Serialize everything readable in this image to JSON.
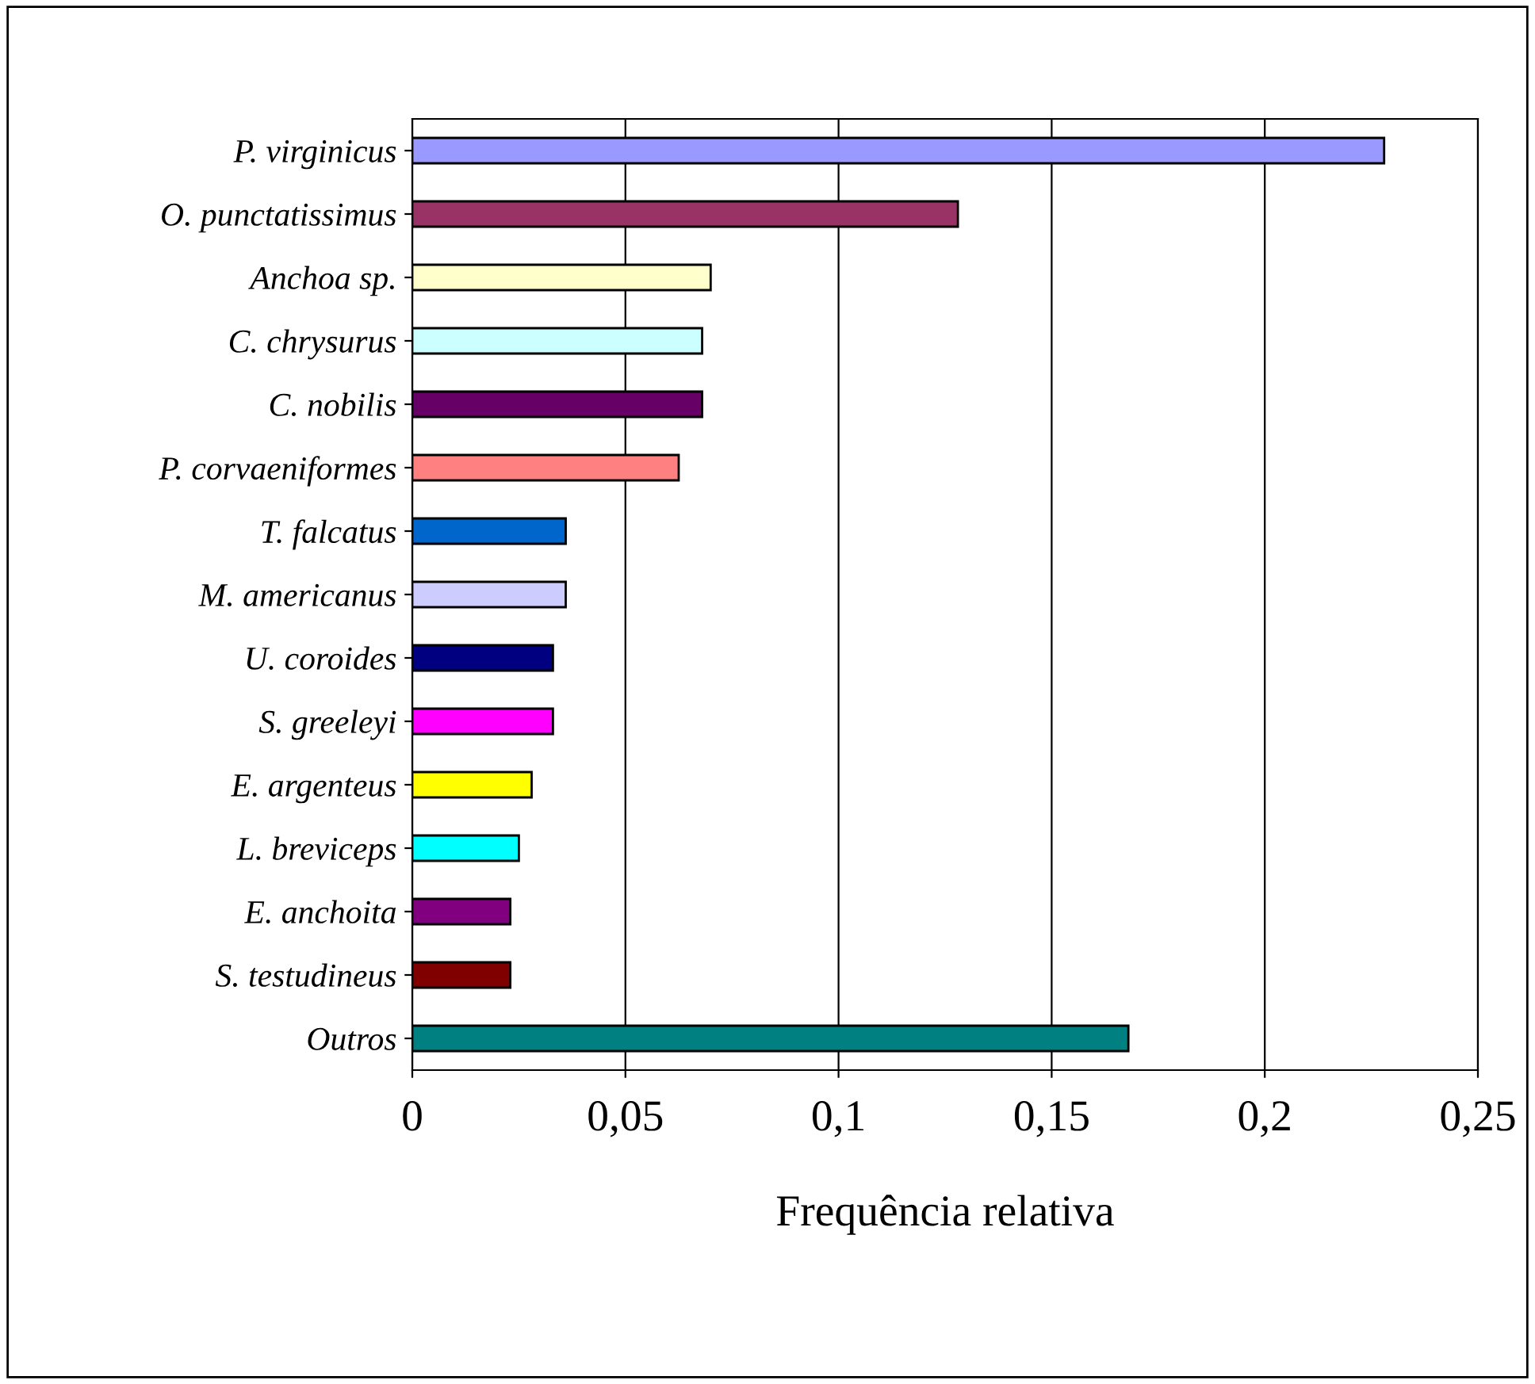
{
  "chart_data": {
    "type": "bar",
    "orientation": "horizontal",
    "xlabel": "Frequência relativa",
    "categories": [
      "P. virginicus",
      "O. punctatissimus",
      "Anchoa sp.",
      "C. chrysurus",
      "C. nobilis",
      "P. corvaeniformes",
      "T. falcatus",
      "M. americanus",
      "U. coroides",
      "S. greeleyi",
      "E. argenteus",
      "L. breviceps",
      "E. anchoita",
      "S. testudineus",
      "Outros"
    ],
    "values": [
      0.228,
      0.128,
      0.07,
      0.068,
      0.068,
      0.0625,
      0.036,
      0.036,
      0.033,
      0.033,
      0.028,
      0.025,
      0.023,
      0.023,
      0.168
    ],
    "colors": [
      "#9999ff",
      "#993366",
      "#ffffcc",
      "#ccffff",
      "#660066",
      "#ff8080",
      "#0066cc",
      "#ccccff",
      "#000080",
      "#ff00ff",
      "#ffff00",
      "#00ffff",
      "#800080",
      "#800000",
      "#008080"
    ],
    "xlim": [
      0,
      0.25
    ],
    "xticks": [
      {
        "value": 0,
        "label": "0"
      },
      {
        "value": 0.05,
        "label": "0,05"
      },
      {
        "value": 0.1,
        "label": "0,1"
      },
      {
        "value": 0.15,
        "label": "0,15"
      },
      {
        "value": 0.2,
        "label": "0,2"
      },
      {
        "value": 0.25,
        "label": "0,25"
      }
    ],
    "grid": "x",
    "legend": false
  }
}
